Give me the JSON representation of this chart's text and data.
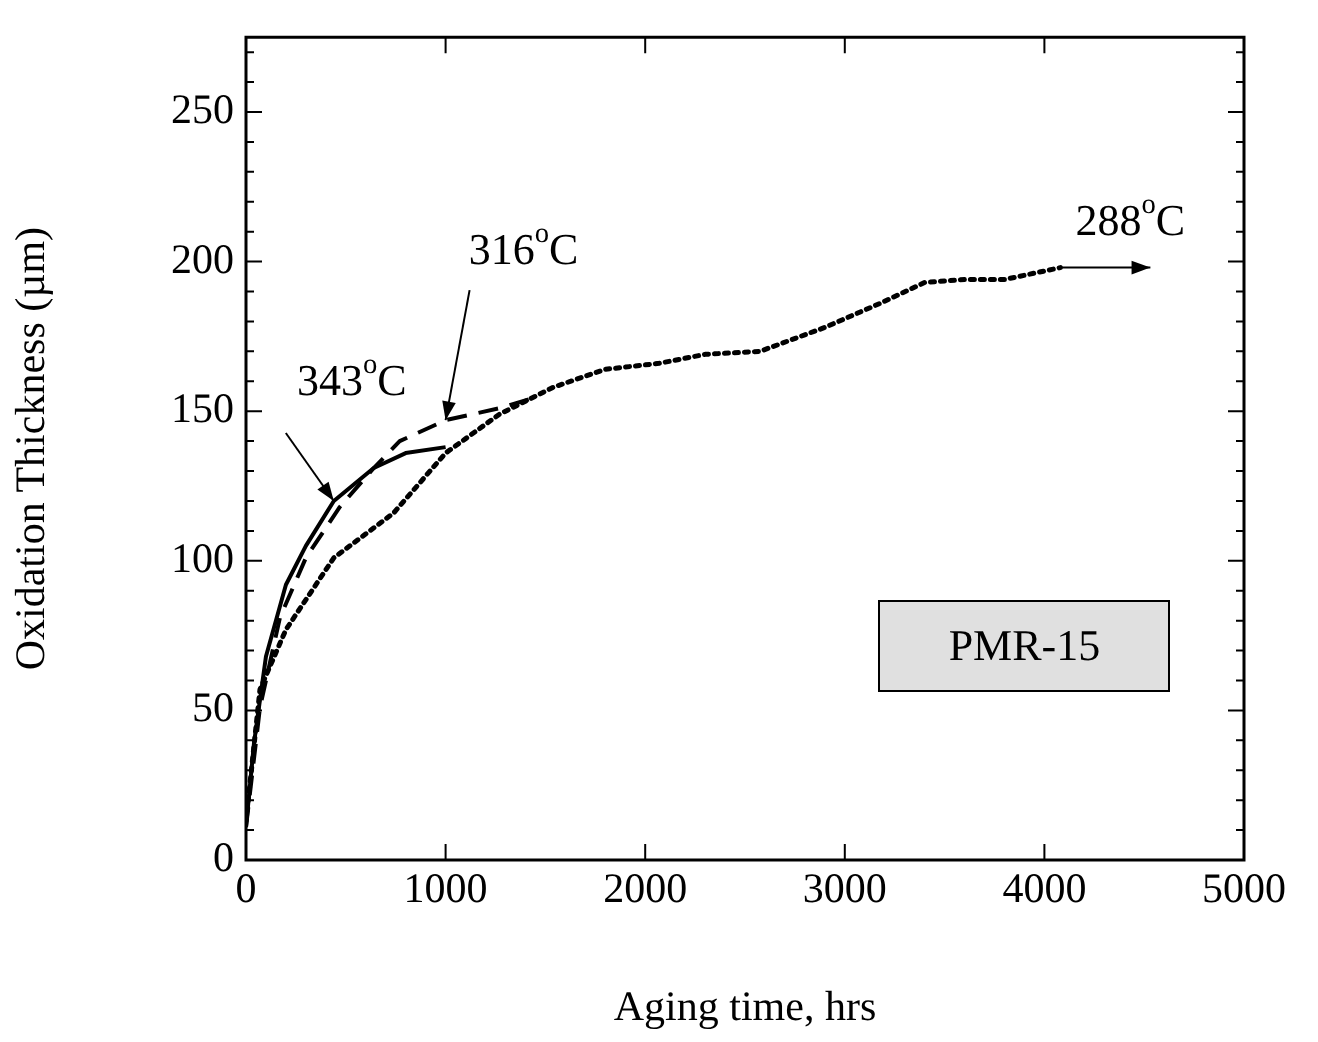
{
  "chart_data": {
    "type": "line",
    "xlabel": "Aging time, hrs",
    "ylabel": "Oxidation Thickness (µm)",
    "xlim": [
      0,
      5000
    ],
    "ylim": [
      0,
      275
    ],
    "xticks": [
      0,
      1000,
      2000,
      3000,
      4000,
      5000
    ],
    "yticks": [
      0,
      {
        "value": 10,
        "label": null
      },
      {
        "value": 20,
        "label": null
      },
      {
        "value": 30,
        "label": null
      },
      {
        "value": 40,
        "label": null
      },
      50,
      {
        "value": 60,
        "label": null
      },
      {
        "value": 70,
        "label": null
      },
      {
        "value": 80,
        "label": null
      },
      {
        "value": 90,
        "label": null
      },
      100,
      {
        "value": 110,
        "label": null
      },
      {
        "value": 120,
        "label": null
      },
      {
        "value": 130,
        "label": null
      },
      {
        "value": 140,
        "label": null
      },
      150,
      {
        "value": 160,
        "label": null
      },
      {
        "value": 170,
        "label": null
      },
      {
        "value": 180,
        "label": null
      },
      {
        "value": 190,
        "label": null
      },
      200,
      {
        "value": 210,
        "label": null
      },
      {
        "value": 220,
        "label": null
      },
      {
        "value": 230,
        "label": null
      },
      {
        "value": 240,
        "label": null
      },
      250,
      {
        "value": 260,
        "label": null
      },
      {
        "value": 270,
        "label": null
      }
    ],
    "grid": false,
    "legend": false,
    "marker": "none",
    "series": [
      {
        "color": "#000000",
        "line_style": "solid",
        "x": [
          0,
          40,
          100,
          200,
          300,
          440,
          640,
          800,
          1000
        ],
        "values": [
          11,
          39,
          68,
          92,
          105,
          120,
          131,
          136,
          138
        ]
      },
      {
        "color": "#000000",
        "line_style": "dashed",
        "x": [
          0,
          70,
          170,
          300,
          470,
          640,
          770,
          1000,
          1270,
          1470
        ],
        "values": [
          11,
          51,
          81,
          101,
          118,
          131,
          140,
          147,
          151,
          155
        ]
      },
      {
        "color": "#000000",
        "line_style": "dotted",
        "x": [
          0,
          70,
          200,
          440,
          740,
          1000,
          1270,
          1540,
          1800,
          2070,
          2300,
          2575,
          2900,
          3175,
          3400,
          3600,
          3800,
          4080
        ],
        "values": [
          13,
          57,
          77,
          101,
          116,
          136,
          149,
          158,
          164,
          166,
          169,
          170,
          178,
          186,
          193,
          194,
          194,
          198
        ]
      }
    ],
    "annotations": [
      {
        "text": "343$^{o}$C",
        "x": 440,
        "y": 120
      },
      {
        "text": "316$^{o}$C",
        "x": 1000,
        "y": 147
      },
      {
        "text": "288$^{o}$C",
        "x": 4080,
        "y": 198
      },
      "PMR-15"
    ]
  }
}
